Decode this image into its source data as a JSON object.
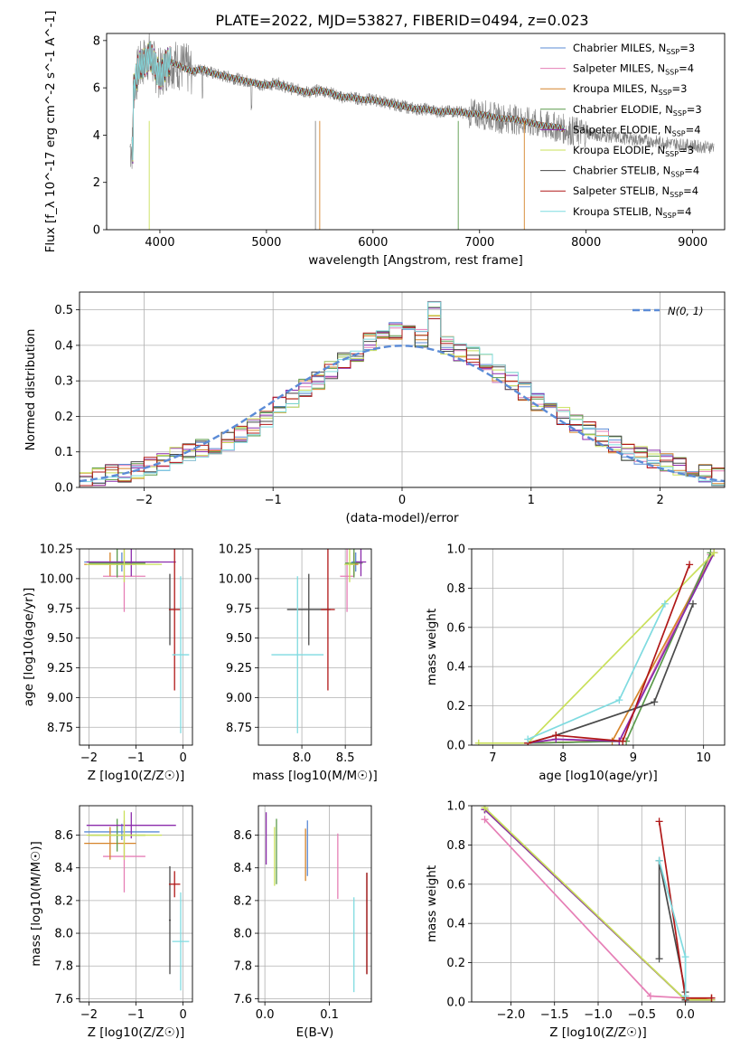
{
  "figure": {
    "title": "PLATE=2022, MJD=53827, FIBERID=0494, z=0.023"
  },
  "models": [
    {
      "label": "Chabrier MILES, N$_{SSP}$=3",
      "short": "Chabrier MILES",
      "n": "N_SSP=3",
      "color": "#5b8bd6"
    },
    {
      "label": "Salpeter MILES, N$_{SSP}$=4",
      "short": "Salpeter MILES",
      "n": "N_SSP=4",
      "color": "#e67fb6"
    },
    {
      "label": "Kroupa MILES, N$_{SSP}$=3",
      "short": "Kroupa MILES",
      "n": "N_SSP=3",
      "color": "#d6842a"
    },
    {
      "label": "Chabrier ELODIE, N$_{SSP}$=3",
      "short": "Chabrier ELODIE",
      "n": "N_SSP=3",
      "color": "#5a9a4a"
    },
    {
      "label": "Salpeter ELODIE, N$_{SSP}$=4",
      "short": "Salpeter ELODIE",
      "n": "N_SSP=4",
      "color": "#8b2bab"
    },
    {
      "label": "Kroupa ELODIE, N$_{SSP}$=3",
      "short": "Kroupa ELODIE",
      "n": "N_SSP=3",
      "color": "#c9e05a"
    },
    {
      "label": "Chabrier STELIB, N$_{SSP}$=4",
      "short": "Chabrier STELIB",
      "n": "N_SSP=4",
      "color": "#4a4a4a"
    },
    {
      "label": "Salpeter STELIB, N$_{SSP}$=4",
      "short": "Salpeter STELIB",
      "n": "N_SSP=4",
      "color": "#b01818"
    },
    {
      "label": "Kroupa STELIB, N$_{SSP}$=4",
      "short": "Kroupa STELIB",
      "n": "N_SSP=4",
      "color": "#7fdbe0"
    }
  ],
  "chart_data": [
    {
      "id": "spectrum",
      "type": "line",
      "title": "PLATE=2022, MJD=53827, FIBERID=0494, z=0.023",
      "xlabel": "wavelength [Angstrom, rest frame]",
      "ylabel": "Flux [f_λ 10^-17 erg cm^-2 s^-1 A^-1]",
      "xlim": [
        3500,
        9300
      ],
      "ylim": [
        0,
        8.3
      ],
      "xticks": [
        4000,
        5000,
        6000,
        7000,
        8000,
        9000
      ],
      "yticks": [
        0,
        2,
        4,
        6,
        8
      ],
      "legend": "top-right",
      "data_color": "#808080",
      "model_curve": {
        "x": [
          3750,
          3800,
          3850,
          3900,
          3950,
          4000,
          4100,
          4200,
          4300,
          4400,
          4500,
          4600,
          4700,
          4800,
          4900,
          5000,
          5100,
          5200,
          5300,
          5400,
          5500,
          5600,
          5700,
          5800,
          5900,
          6000,
          6100,
          6200,
          6300,
          6400,
          6500,
          6600,
          6700,
          6800,
          6900,
          7000,
          7100,
          7200,
          7300,
          7400,
          7500,
          7600,
          7700,
          7800,
          7900,
          8000,
          8100,
          8200,
          8300,
          8400,
          8500,
          8600,
          8700,
          8800,
          8900,
          9000,
          9100,
          9200
        ],
        "y": [
          5.9,
          6.8,
          7.1,
          7.4,
          6.9,
          6.6,
          7.1,
          6.9,
          6.7,
          6.8,
          6.6,
          6.5,
          6.4,
          6.3,
          6.2,
          6.1,
          6.2,
          6.0,
          5.9,
          5.8,
          5.9,
          5.8,
          5.6,
          5.6,
          5.5,
          5.5,
          5.4,
          5.3,
          5.2,
          5.1,
          5.1,
          5.0,
          5.0,
          5.0,
          4.9,
          4.9,
          4.8,
          4.7,
          4.7,
          4.6,
          4.5,
          4.4,
          4.35,
          4.25,
          4.15,
          4.1,
          4.0,
          3.95,
          3.9,
          3.85,
          3.8,
          3.75,
          3.7,
          3.65,
          3.6,
          3.55,
          3.5,
          3.5
        ]
      }
    },
    {
      "id": "residuals",
      "type": "line",
      "xlabel": "(data-model)/error",
      "ylabel": "Normed distribution",
      "xlim": [
        -2.5,
        2.5
      ],
      "ylim": [
        0,
        0.55
      ],
      "xticks": [
        -2,
        -1,
        0,
        1,
        2
      ],
      "yticks": [
        0.0,
        0.1,
        0.2,
        0.3,
        0.4,
        0.5
      ],
      "legend": "top-right",
      "gaussian": {
        "name": "N(0,1)",
        "mu": 0,
        "sigma": 1,
        "color": "#5b8bd6"
      },
      "bin_edges": [
        -2.5,
        -2.4,
        -2.3,
        -2.2,
        -2.1,
        -2.0,
        -1.9,
        -1.8,
        -1.7,
        -1.6,
        -1.5,
        -1.4,
        -1.3,
        -1.2,
        -1.1,
        -1.0,
        -0.9,
        -0.8,
        -0.7,
        -0.6,
        -0.5,
        -0.4,
        -0.3,
        -0.2,
        -0.1,
        0.0,
        0.1,
        0.2,
        0.3,
        0.4,
        0.5,
        0.6,
        0.7,
        0.8,
        0.9,
        1.0,
        1.1,
        1.2,
        1.3,
        1.4,
        1.5,
        1.6,
        1.7,
        1.8,
        1.9,
        2.0,
        2.1,
        2.2,
        2.3,
        2.4,
        2.5
      ],
      "hist_heights": [
        0.02,
        0.03,
        0.04,
        0.04,
        0.05,
        0.06,
        0.07,
        0.09,
        0.1,
        0.11,
        0.12,
        0.13,
        0.15,
        0.17,
        0.19,
        0.23,
        0.25,
        0.28,
        0.3,
        0.33,
        0.36,
        0.38,
        0.41,
        0.43,
        0.44,
        0.43,
        0.42,
        0.5,
        0.4,
        0.38,
        0.37,
        0.35,
        0.32,
        0.3,
        0.27,
        0.24,
        0.22,
        0.2,
        0.18,
        0.16,
        0.14,
        0.12,
        0.1,
        0.09,
        0.08,
        0.07,
        0.06,
        0.05,
        0.04,
        0.03
      ]
    },
    {
      "id": "age_vs_Z",
      "type": "scatter",
      "xlabel": "Z [log10(Z/Z☉)]",
      "ylabel": "age [log10(age/yr)]",
      "xlim": [
        -2.2,
        0.2
      ],
      "ylim": [
        8.6,
        10.25
      ],
      "xticks": [
        -2,
        -1,
        0
      ],
      "yticks": [
        8.75,
        9.0,
        9.25,
        9.5,
        9.75,
        10.0,
        10.25
      ],
      "points": [
        {
          "x": -1.3,
          "y": 10.14,
          "xerr": 0.8,
          "yerr": 0.08
        },
        {
          "x": -1.25,
          "y": 10.02,
          "xerr": 0.45,
          "yerr": 0.3
        },
        {
          "x": -1.55,
          "y": 10.12,
          "xerr": 0.55,
          "yerr": 0.1
        },
        {
          "x": -1.4,
          "y": 10.13,
          "xerr": 0.6,
          "yerr": 0.12
        },
        {
          "x": -1.1,
          "y": 10.14,
          "xerr": 0.95,
          "yerr": 0.12
        },
        {
          "x": -1.25,
          "y": 10.12,
          "xerr": 0.8,
          "yerr": 0.15
        },
        {
          "x": -0.28,
          "y": 9.74,
          "xerr": 0.02,
          "yerr": 0.3
        },
        {
          "x": -0.18,
          "y": 9.74,
          "xerr": 0.12,
          "yerr": 0.68
        },
        {
          "x": -0.05,
          "y": 9.36,
          "xerr": 0.18,
          "yerr": 0.66
        }
      ]
    },
    {
      "id": "age_vs_mass",
      "type": "scatter",
      "xlabel": "mass [log10(M/M☉)]",
      "ylabel": "",
      "xlim": [
        7.5,
        8.8
      ],
      "ylim": [
        8.6,
        10.25
      ],
      "xticks": [
        8.0,
        8.5
      ],
      "yticks": [
        8.75,
        9.0,
        9.25,
        9.5,
        9.75,
        10.0,
        10.25
      ],
      "points": [
        {
          "x": 8.62,
          "y": 10.14,
          "xerr": 0.05,
          "yerr": 0.08
        },
        {
          "x": 8.52,
          "y": 10.02,
          "xerr": 0.08,
          "yerr": 0.3
        },
        {
          "x": 8.6,
          "y": 10.12,
          "xerr": 0.05,
          "yerr": 0.1
        },
        {
          "x": 8.6,
          "y": 10.13,
          "xerr": 0.1,
          "yerr": 0.12
        },
        {
          "x": 8.68,
          "y": 10.14,
          "xerr": 0.06,
          "yerr": 0.12
        },
        {
          "x": 8.55,
          "y": 10.12,
          "xerr": 0.06,
          "yerr": 0.15
        },
        {
          "x": 8.08,
          "y": 9.74,
          "xerr": 0.25,
          "yerr": 0.3
        },
        {
          "x": 8.3,
          "y": 9.74,
          "xerr": 0.08,
          "yerr": 0.68
        },
        {
          "x": 7.95,
          "y": 9.36,
          "xerr": 0.3,
          "yerr": 0.66
        }
      ]
    },
    {
      "id": "massweight_vs_age",
      "type": "line",
      "xlabel": "age [log10(age/yr)]",
      "ylabel": "mass weight",
      "xlim": [
        6.7,
        10.3
      ],
      "ylim": [
        0,
        1.0
      ],
      "xticks": [
        7,
        8,
        9,
        10
      ],
      "yticks": [
        0.0,
        0.2,
        0.4,
        0.6,
        0.8,
        1.0
      ],
      "series": [
        {
          "x": [
            7.5,
            8.8,
            10.15
          ],
          "y": [
            0.01,
            0.02,
            0.98
          ]
        },
        {
          "x": [
            7.5,
            7.9,
            8.8,
            10.1
          ],
          "y": [
            0.01,
            0.03,
            0.02,
            0.97
          ]
        },
        {
          "x": [
            7.5,
            8.7,
            10.15
          ],
          "y": [
            0.01,
            0.02,
            0.98
          ]
        },
        {
          "x": [
            7.5,
            8.9,
            10.1
          ],
          "y": [
            0.01,
            0.02,
            0.98
          ]
        },
        {
          "x": [
            7.5,
            7.9,
            8.8,
            10.15
          ],
          "y": [
            0.01,
            0.03,
            0.02,
            0.98
          ]
        },
        {
          "x": [
            6.8,
            7.5,
            10.15
          ],
          "y": [
            0.01,
            0.01,
            0.98
          ]
        },
        {
          "x": [
            7.5,
            7.9,
            9.3,
            9.85
          ],
          "y": [
            0.01,
            0.05,
            0.22,
            0.72
          ]
        },
        {
          "x": [
            7.5,
            7.9,
            8.85,
            9.8
          ],
          "y": [
            0.01,
            0.05,
            0.02,
            0.92
          ]
        },
        {
          "x": [
            7.5,
            8.8,
            9.45
          ],
          "y": [
            0.03,
            0.23,
            0.72
          ]
        }
      ]
    },
    {
      "id": "mass_vs_Z",
      "type": "scatter",
      "xlabel": "Z [log10(Z/Z☉)]",
      "ylabel": "mass [log10(M/M☉)]",
      "xlim": [
        -2.2,
        0.2
      ],
      "ylim": [
        7.58,
        8.78
      ],
      "xticks": [
        -2,
        -1,
        0
      ],
      "yticks": [
        7.6,
        7.8,
        8.0,
        8.2,
        8.4,
        8.6
      ],
      "points": [
        {
          "x": -1.3,
          "y": 8.62,
          "xerr": 0.8,
          "yerr": 0.05
        },
        {
          "x": -1.25,
          "y": 8.47,
          "xerr": 0.45,
          "yerr": 0.22
        },
        {
          "x": -1.55,
          "y": 8.55,
          "xerr": 0.55,
          "yerr": 0.1
        },
        {
          "x": -1.4,
          "y": 8.6,
          "xerr": 0.6,
          "yerr": 0.1
        },
        {
          "x": -1.1,
          "y": 8.66,
          "xerr": 0.95,
          "yerr": 0.08
        },
        {
          "x": -1.25,
          "y": 8.6,
          "xerr": 0.8,
          "yerr": 0.15
        },
        {
          "x": -0.28,
          "y": 8.08,
          "xerr": 0.02,
          "yerr": 0.33
        },
        {
          "x": -0.18,
          "y": 8.3,
          "xerr": 0.12,
          "yerr": 0.08
        },
        {
          "x": -0.05,
          "y": 7.95,
          "xerr": 0.18,
          "yerr": 0.3
        }
      ]
    },
    {
      "id": "mass_vs_ebv",
      "type": "scatter",
      "xlabel": "E(B-V)",
      "ylabel": "",
      "xlim": [
        -0.01,
        0.165
      ],
      "ylim": [
        7.58,
        8.78
      ],
      "xticks": [
        0.0,
        0.1
      ],
      "yticks": [
        7.6,
        7.8,
        8.0,
        8.2,
        8.4,
        8.6
      ],
      "points": [
        {
          "x": 0.066,
          "y": 8.52,
          "xerr": 0,
          "yerr": 0.17
        },
        {
          "x": 0.113,
          "y": 8.41,
          "xerr": 0,
          "yerr": 0.2
        },
        {
          "x": 0.063,
          "y": 8.48,
          "xerr": 0,
          "yerr": 0.16
        },
        {
          "x": 0.018,
          "y": 8.5,
          "xerr": 0,
          "yerr": 0.2
        },
        {
          "x": 0.002,
          "y": 8.58,
          "xerr": 0,
          "yerr": 0.16
        },
        {
          "x": 0.015,
          "y": 8.47,
          "xerr": 0,
          "yerr": 0.18
        },
        {
          "x": 0.158,
          "y": 8.06,
          "xerr": 0,
          "yerr": 0.31
        },
        {
          "x": 0.158,
          "y": 8.06,
          "xerr": 0,
          "yerr": 0.31
        },
        {
          "x": 0.138,
          "y": 7.93,
          "xerr": 0,
          "yerr": 0.29
        }
      ]
    },
    {
      "id": "massweight_vs_Z",
      "type": "line",
      "xlabel": "Z [log10(Z/Z☉)]",
      "ylabel": "mass weight",
      "xlim": [
        -2.45,
        0.45
      ],
      "ylim": [
        0,
        1.0
      ],
      "xticks": [
        -2.0,
        -1.5,
        -1.0,
        -0.5,
        0.0
      ],
      "yticks": [
        0.0,
        0.2,
        0.4,
        0.6,
        0.8,
        1.0
      ],
      "series": [
        {
          "x": [
            -2.3,
            0.0,
            0.3
          ],
          "y": [
            0.98,
            0.01,
            0.01
          ]
        },
        {
          "x": [
            -2.3,
            -0.4,
            0.0,
            0.3
          ],
          "y": [
            0.93,
            0.03,
            0.02,
            0.02
          ]
        },
        {
          "x": [
            -2.3,
            0.0,
            0.3
          ],
          "y": [
            0.98,
            0.01,
            0.02
          ]
        },
        {
          "x": [
            -2.3,
            0.0,
            0.3
          ],
          "y": [
            0.98,
            0.01,
            0.01
          ]
        },
        {
          "x": [
            -2.3,
            0.0,
            0.3
          ],
          "y": [
            0.98,
            0.01,
            0.01
          ]
        },
        {
          "x": [
            -2.3,
            0.0,
            0.3
          ],
          "y": [
            0.99,
            0.01,
            0.01
          ]
        },
        {
          "x": [
            -0.3,
            -0.3,
            0.0,
            0.0
          ],
          "y": [
            0.22,
            0.72,
            0.05,
            0.01
          ]
        },
        {
          "x": [
            -0.3,
            0.0,
            0.3
          ],
          "y": [
            0.92,
            0.02,
            0.02
          ]
        },
        {
          "x": [
            -0.3,
            0.0,
            0.0
          ],
          "y": [
            0.72,
            0.23,
            0.03
          ]
        }
      ]
    }
  ]
}
